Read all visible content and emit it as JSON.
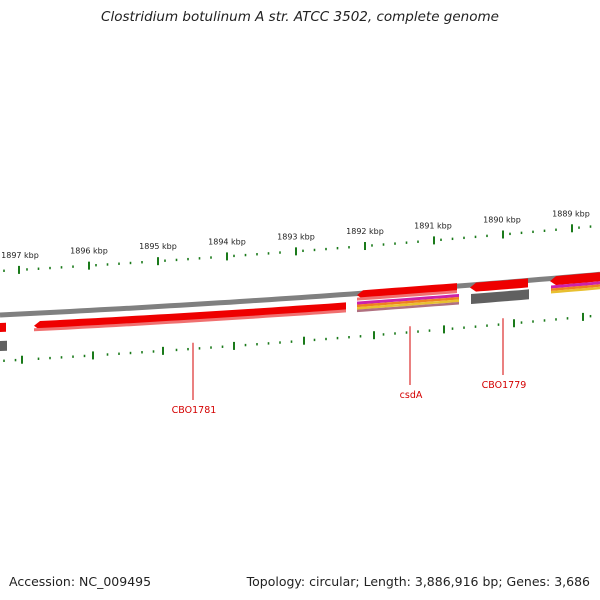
{
  "title": "Clostridium botulinum A str. ATCC 3502, complete genome",
  "ticks": [
    "1897 kbp",
    "1896 kbp",
    "1895 kbp",
    "1894 kbp",
    "1893 kbp",
    "1892 kbp",
    "1891 kbp",
    "1890 kbp",
    "1889 kbp"
  ],
  "genes": [
    "CBO1781",
    "csdA",
    "CBO1779"
  ],
  "footer": {
    "accession": "Accession: NC_009495",
    "summary": "Topology: circular; Length: 3,886,916 bp; Genes: 3,686"
  },
  "colors": {
    "forward_cds": "#ee0000",
    "backbone": "#808080",
    "tick": "#1a7a1a",
    "gene_label": "#d40000",
    "reverse_cds": "#606060",
    "cog_magenta": "#cc22aa",
    "cog_orange": "#f08020",
    "cog_yellow": "#e8c030"
  }
}
